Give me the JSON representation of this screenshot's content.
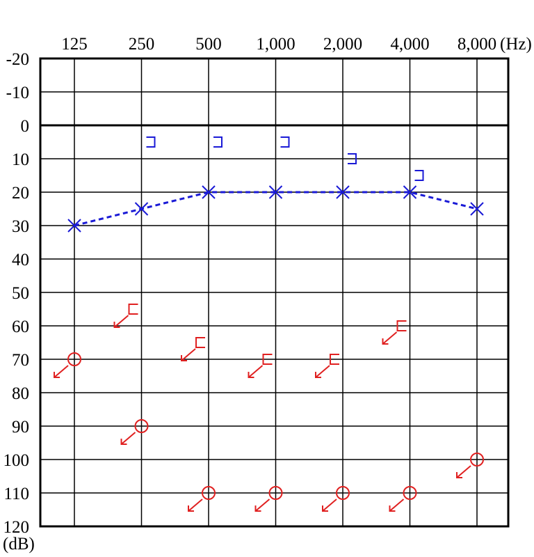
{
  "chart_data": {
    "type": "scatter",
    "x_ticks": [
      "125",
      "250",
      "500",
      "1,000",
      "2,000",
      "4,000",
      "8,000"
    ],
    "x_unit": "(Hz)",
    "y_ticks": [
      "-20",
      "-10",
      "0",
      "10",
      "20",
      "30",
      "40",
      "50",
      "60",
      "70",
      "80",
      "90",
      "100",
      "110",
      "120"
    ],
    "y_unit": "(dB)",
    "ylim": [
      -20,
      120
    ],
    "y_inverted": true,
    "grid": true,
    "series": [
      {
        "marker": "x",
        "color": "#1a1ad6",
        "line": "dashed",
        "x": [
          "125",
          "250",
          "500",
          "1,000",
          "2,000",
          "4,000",
          "8,000"
        ],
        "y": [
          30,
          25,
          20,
          20,
          20,
          20,
          25
        ]
      },
      {
        "marker": "bracket-right",
        "color": "#1a1ad6",
        "line": "none",
        "x": [
          "250",
          "500",
          "1,000",
          "2,000",
          "4,000"
        ],
        "y": [
          5,
          5,
          5,
          10,
          15
        ]
      },
      {
        "marker": "circle-arrow",
        "color": "#e02020",
        "line": "none",
        "x": [
          "125",
          "250",
          "500",
          "1,000",
          "2,000",
          "4,000",
          "8,000"
        ],
        "y": [
          70,
          90,
          110,
          110,
          110,
          110,
          100
        ]
      },
      {
        "marker": "bracket-left-arrow",
        "color": "#e02020",
        "line": "none",
        "x": [
          "250",
          "500",
          "1,000",
          "2,000",
          "4,000"
        ],
        "y": [
          55,
          65,
          70,
          70,
          60
        ]
      }
    ]
  }
}
